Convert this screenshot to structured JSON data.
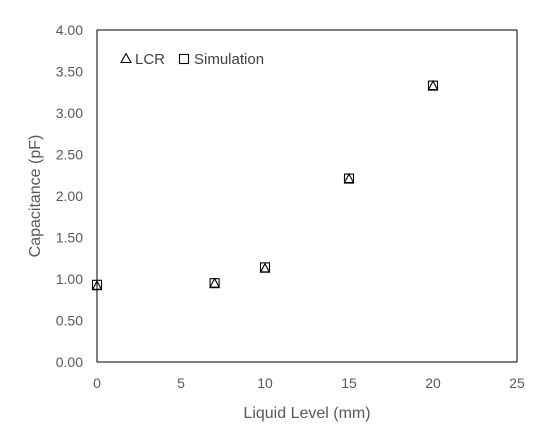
{
  "chart_data": {
    "type": "scatter",
    "xlabel": "Liquid Level (mm)",
    "ylabel": "Capacitance (pF)",
    "xlim": [
      0,
      25
    ],
    "ylim": [
      0,
      4
    ],
    "x_ticks": [
      "0",
      "5",
      "10",
      "15",
      "20",
      "25"
    ],
    "y_ticks": [
      "0.00",
      "0.50",
      "1.00",
      "1.50",
      "2.00",
      "2.50",
      "3.00",
      "3.50",
      "4.00"
    ],
    "grid": false,
    "legend_position": "top-left",
    "series": [
      {
        "name": "LCR",
        "marker": "triangle",
        "x": [
          0,
          7,
          10,
          15,
          20
        ],
        "y": [
          0.92,
          0.95,
          1.13,
          2.21,
          3.33
        ]
      },
      {
        "name": "Simulation",
        "marker": "square",
        "x": [
          0,
          7,
          10,
          15,
          20
        ],
        "y": [
          0.93,
          0.95,
          1.14,
          2.21,
          3.33
        ]
      }
    ]
  }
}
